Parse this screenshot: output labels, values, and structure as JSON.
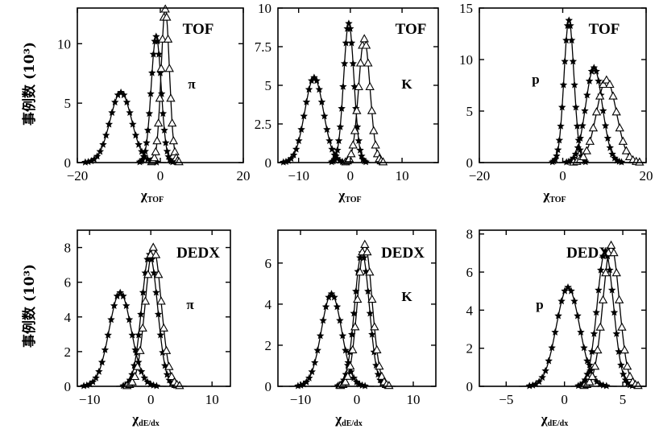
{
  "ylabel_row1": "事例数 (10³)",
  "ylabel_row2": "事例数 (10³)",
  "chart_data": [
    {
      "type": "line",
      "detector": "TOF",
      "particle": "π",
      "xlabel_main": "χ",
      "xlabel_sub": "TOF",
      "xlim": [
        -20,
        20
      ],
      "ylim": [
        0,
        13
      ],
      "xticks": [
        "−20",
        "0",
        "20"
      ],
      "xtick_values": [
        -20,
        0,
        20
      ],
      "yticks": [
        "0",
        "5",
        "10"
      ],
      "ytick_values": [
        0,
        5,
        10
      ],
      "series": [
        {
          "marker": "star",
          "mu": -9.5,
          "sigma": 2.6,
          "peak": 5.9
        },
        {
          "marker": "star",
          "mu": -1.0,
          "sigma": 1.2,
          "peak": 10.6
        },
        {
          "marker": "triangle",
          "mu": 1.2,
          "sigma": 1.0,
          "peak": 12.9
        }
      ]
    },
    {
      "type": "line",
      "detector": "TOF",
      "particle": "K",
      "xlabel_main": "χ",
      "xlabel_sub": "TOF",
      "xlim": [
        -14,
        17
      ],
      "ylim": [
        0,
        10
      ],
      "xticks": [
        "−10",
        "0",
        "10"
      ],
      "xtick_values": [
        -10,
        0,
        10
      ],
      "yticks": [
        "0",
        "2.5",
        "5",
        "7.5",
        "10"
      ],
      "ytick_values": [
        0,
        2.5,
        5,
        7.5,
        10
      ],
      "series": [
        {
          "marker": "star",
          "mu": -7.0,
          "sigma": 1.8,
          "peak": 5.5
        },
        {
          "marker": "star",
          "mu": -0.3,
          "sigma": 1.0,
          "peak": 9.0
        },
        {
          "marker": "triangle",
          "mu": 2.7,
          "sigma": 1.1,
          "peak": 8.0
        }
      ]
    },
    {
      "type": "line",
      "detector": "TOF",
      "particle": "p",
      "xlabel_main": "χ",
      "xlabel_sub": "TOF",
      "xlim": [
        -20,
        20
      ],
      "ylim": [
        0,
        15
      ],
      "xticks": [
        "−20",
        "0",
        "20"
      ],
      "xtick_values": [
        -20,
        0,
        20
      ],
      "yticks": [
        "0",
        "5",
        "10",
        "15"
      ],
      "ytick_values": [
        0,
        5,
        10,
        15
      ],
      "series": [
        {
          "marker": "star",
          "mu": 1.5,
          "sigma": 1.2,
          "peak": 13.8
        },
        {
          "marker": "star",
          "mu": 7.5,
          "sigma": 2.0,
          "peak": 9.2
        },
        {
          "marker": "triangle",
          "mu": 10.5,
          "sigma": 2.4,
          "peak": 8.0
        }
      ]
    },
    {
      "type": "line",
      "detector": "DEDX",
      "particle": "π",
      "xlabel_main": "χ",
      "xlabel_sub": "dE/dx",
      "xlim": [
        -12,
        13
      ],
      "ylim": [
        0,
        9
      ],
      "xticks": [
        "−10",
        "0",
        "10"
      ],
      "xtick_values": [
        -10,
        0,
        10
      ],
      "yticks": [
        "0",
        "2",
        "4",
        "6",
        "8"
      ],
      "ytick_values": [
        0,
        2,
        4,
        6,
        8
      ],
      "series": [
        {
          "marker": "star",
          "mu": -5.0,
          "sigma": 1.8,
          "peak": 5.4
        },
        {
          "marker": "star",
          "mu": -0.2,
          "sigma": 1.3,
          "peak": 7.6
        },
        {
          "marker": "triangle",
          "mu": 0.4,
          "sigma": 1.3,
          "peak": 8.0
        }
      ]
    },
    {
      "type": "line",
      "detector": "DEDX",
      "particle": "K",
      "xlabel_main": "χ",
      "xlabel_sub": "dE/dx",
      "xlim": [
        -14,
        14
      ],
      "ylim": [
        0,
        7.6
      ],
      "xticks": [
        "−10",
        "0",
        "10"
      ],
      "xtick_values": [
        -10,
        0,
        10
      ],
      "yticks": [
        "0",
        "2",
        "4",
        "6"
      ],
      "ytick_values": [
        0,
        2,
        4,
        6
      ],
      "series": [
        {
          "marker": "star",
          "mu": -4.5,
          "sigma": 1.8,
          "peak": 4.5
        },
        {
          "marker": "star",
          "mu": 0.9,
          "sigma": 1.3,
          "peak": 6.5
        },
        {
          "marker": "triangle",
          "mu": 1.4,
          "sigma": 1.3,
          "peak": 6.9
        }
      ]
    },
    {
      "type": "line",
      "detector": "DEDX",
      "particle": "p",
      "xlabel_main": "χ",
      "xlabel_sub": "dE/dx",
      "xlim": [
        -7.3,
        7
      ],
      "ylim": [
        0,
        8.2
      ],
      "xticks": [
        "−5",
        "0",
        "5"
      ],
      "xtick_values": [
        -5,
        0,
        5
      ],
      "yticks": [
        "0",
        "2",
        "4",
        "6",
        "8"
      ],
      "ytick_values": [
        0,
        2,
        4,
        6,
        8
      ],
      "series": [
        {
          "marker": "star",
          "mu": 0.3,
          "sigma": 1.0,
          "peak": 5.2
        },
        {
          "marker": "star",
          "mu": 3.5,
          "sigma": 0.7,
          "peak": 7.1
        },
        {
          "marker": "triangle",
          "mu": 4.0,
          "sigma": 0.7,
          "peak": 7.4
        }
      ]
    }
  ]
}
